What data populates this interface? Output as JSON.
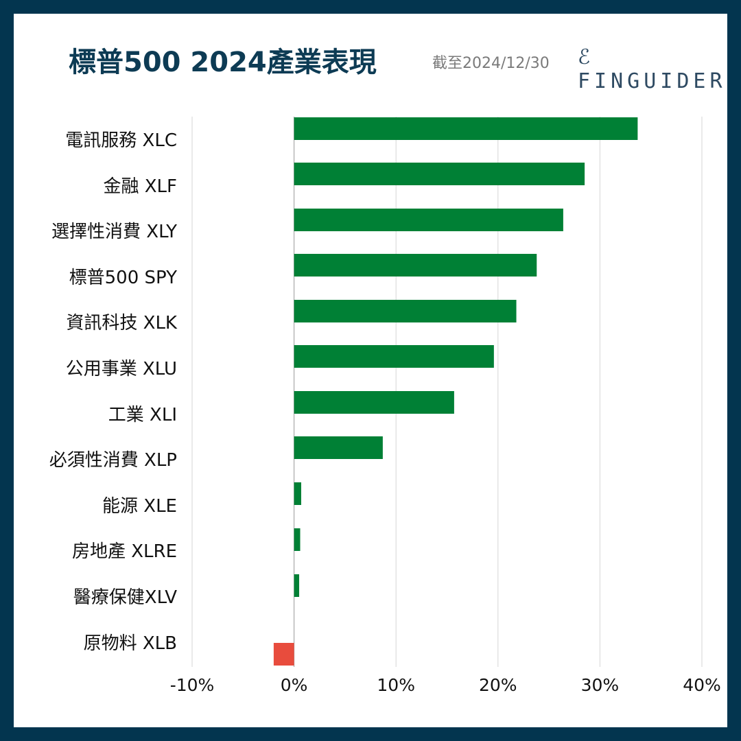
{
  "header": {
    "title": "標普500 2024產業表現",
    "date": "截至2024/12/30",
    "logo": "FINGUIDER"
  },
  "chart_data": {
    "type": "bar",
    "orientation": "horizontal",
    "title": "標普500 2024產業表現",
    "categories": [
      "電訊服務 XLC",
      "金融 XLF",
      "選擇性消費 XLY",
      "標普500 SPY",
      "資訊科技 XLK",
      "公用事業 XLU",
      "工業 XLI",
      "必須性消費 XLP",
      "能源 XLE",
      "房地產 XLRE",
      "醫療保健XLV",
      "原物料 XLB"
    ],
    "values": [
      33.7,
      28.5,
      26.4,
      23.8,
      21.8,
      19.6,
      15.7,
      8.7,
      0.7,
      0.6,
      0.5,
      -2.0
    ],
    "xlim": [
      -10,
      40
    ],
    "xticks": [
      "-10%",
      "0%",
      "10%",
      "20%",
      "30%",
      "40%"
    ],
    "grid": true,
    "colors": {
      "positive": "#008035",
      "negative": "#e84c3d"
    }
  }
}
